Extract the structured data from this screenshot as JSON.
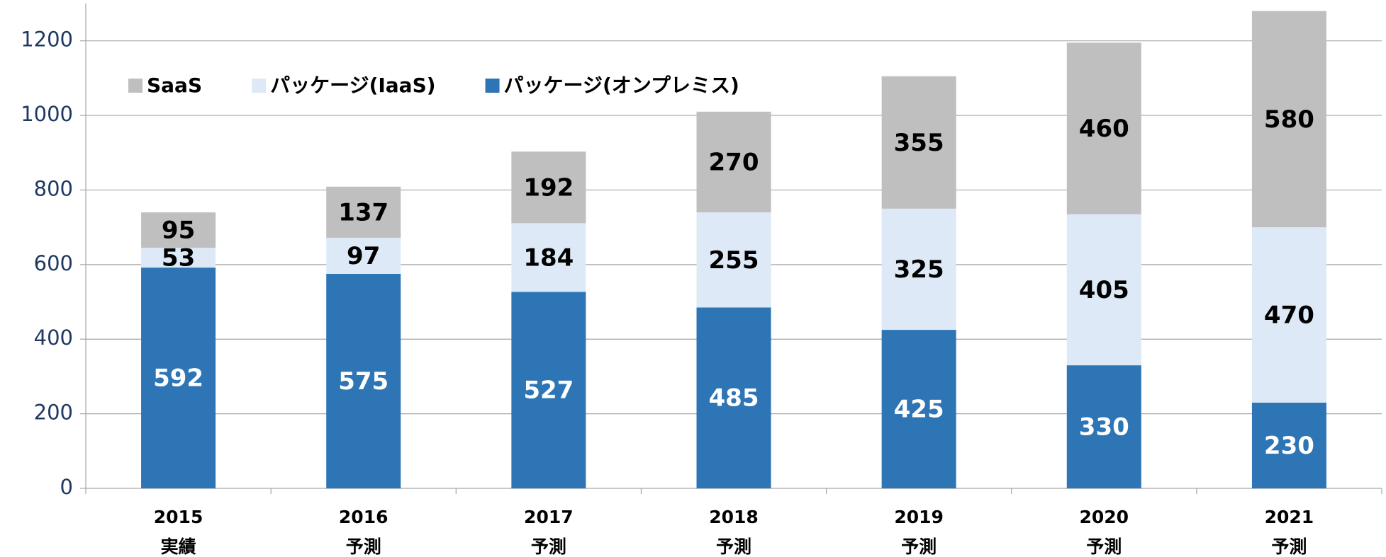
{
  "chart_data": {
    "type": "stacked_bar",
    "categories": [
      "2015",
      "2016",
      "2017",
      "2018",
      "2019",
      "2020",
      "2021"
    ],
    "category_notes": [
      "実績",
      "予測",
      "予測",
      "予測",
      "予測",
      "予測",
      "予測"
    ],
    "series": [
      {
        "name": "SaaS",
        "color": "#bfbfbf",
        "label_color": "#000000",
        "values": [
          95,
          137,
          192,
          270,
          355,
          460,
          580
        ]
      },
      {
        "name": "パッケージ(IaaS)",
        "color": "#dde9f7",
        "label_color": "#000000",
        "values": [
          53,
          97,
          184,
          255,
          325,
          405,
          470
        ]
      },
      {
        "name": "パッケージ(オンプレミス)",
        "color": "#2e75b6",
        "label_color": "#ffffff",
        "values": [
          592,
          575,
          527,
          485,
          425,
          330,
          230
        ]
      }
    ],
    "ylim": [
      0,
      1300
    ],
    "yticks": [
      0,
      200,
      400,
      600,
      800,
      1000,
      1200
    ],
    "grid": true,
    "legend": "top-left"
  }
}
